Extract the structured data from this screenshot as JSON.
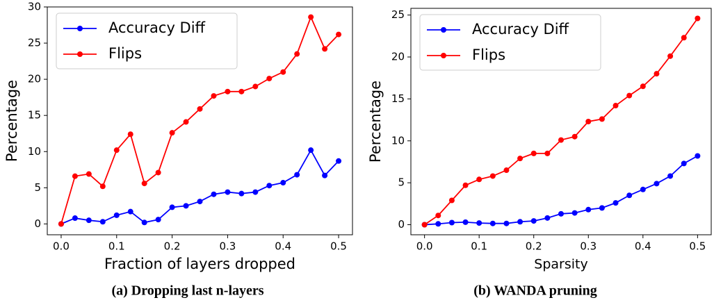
{
  "chart_data": [
    {
      "type": "line",
      "caption": "(a) Dropping last n-layers",
      "xlabel": "Fraction of layers dropped",
      "ylabel": "Percentage",
      "x": [
        0,
        0.025,
        0.05,
        0.075,
        0.1,
        0.125,
        0.15,
        0.175,
        0.2,
        0.225,
        0.25,
        0.275,
        0.3,
        0.325,
        0.35,
        0.375,
        0.4,
        0.425,
        0.45,
        0.475,
        0.5
      ],
      "series": [
        {
          "name": "Accuracy Diff",
          "color": "#0000ff",
          "values": [
            0,
            0.8,
            0.5,
            0.3,
            1.2,
            1.7,
            0.2,
            0.6,
            2.3,
            2.5,
            3.1,
            4.1,
            4.4,
            4.2,
            4.4,
            5.3,
            5.7,
            6.8,
            10.2,
            6.7,
            8.7
          ]
        },
        {
          "name": "Flips",
          "color": "#ff0000",
          "values": [
            0,
            6.6,
            6.9,
            5.2,
            10.2,
            12.4,
            5.6,
            7.1,
            12.6,
            14.1,
            15.9,
            17.7,
            18.3,
            18.3,
            19.0,
            20.1,
            21.0,
            23.5,
            28.6,
            24.2,
            26.2
          ]
        }
      ],
      "xlim": [
        -0.025,
        0.525
      ],
      "xticks": [
        {
          "value": 0,
          "label": "0.0"
        },
        0.1,
        0.2,
        0.3,
        0.4,
        0.5
      ],
      "ylim": [
        -1.5,
        30
      ],
      "yticks": [
        0,
        5,
        10,
        15,
        20,
        25,
        30
      ],
      "legend": "upper-left"
    },
    {
      "type": "line",
      "caption": "(b) WANDA pruning",
      "xlabel": "Sparsity",
      "ylabel": "Percentage",
      "x": [
        0,
        0.025,
        0.05,
        0.075,
        0.1,
        0.125,
        0.15,
        0.175,
        0.2,
        0.225,
        0.25,
        0.275,
        0.3,
        0.325,
        0.35,
        0.375,
        0.4,
        0.425,
        0.45,
        0.475,
        0.5
      ],
      "series": [
        {
          "name": "Accuracy Diff",
          "color": "#0000ff",
          "values": [
            0,
            0.1,
            0.25,
            0.3,
            0.2,
            0.15,
            0.15,
            0.35,
            0.45,
            0.8,
            1.3,
            1.4,
            1.8,
            2.0,
            2.6,
            3.5,
            4.2,
            4.9,
            5.8,
            7.3,
            8.2
          ]
        },
        {
          "name": "Flips",
          "color": "#ff0000",
          "values": [
            0,
            1.1,
            2.9,
            4.7,
            5.4,
            5.8,
            6.5,
            7.9,
            8.5,
            8.5,
            10.1,
            10.5,
            12.3,
            12.6,
            14.2,
            15.4,
            16.5,
            18.0,
            20.1,
            22.3,
            24.6
          ]
        }
      ],
      "xlim": [
        -0.025,
        0.525
      ],
      "xticks": [
        {
          "value": 0,
          "label": "0.0"
        },
        0.1,
        0.2,
        0.3,
        0.4,
        0.5
      ],
      "ylim": [
        -1.2,
        25.8
      ],
      "yticks": [
        0,
        5,
        10,
        15,
        20,
        25
      ],
      "legend": "upper-left"
    }
  ]
}
